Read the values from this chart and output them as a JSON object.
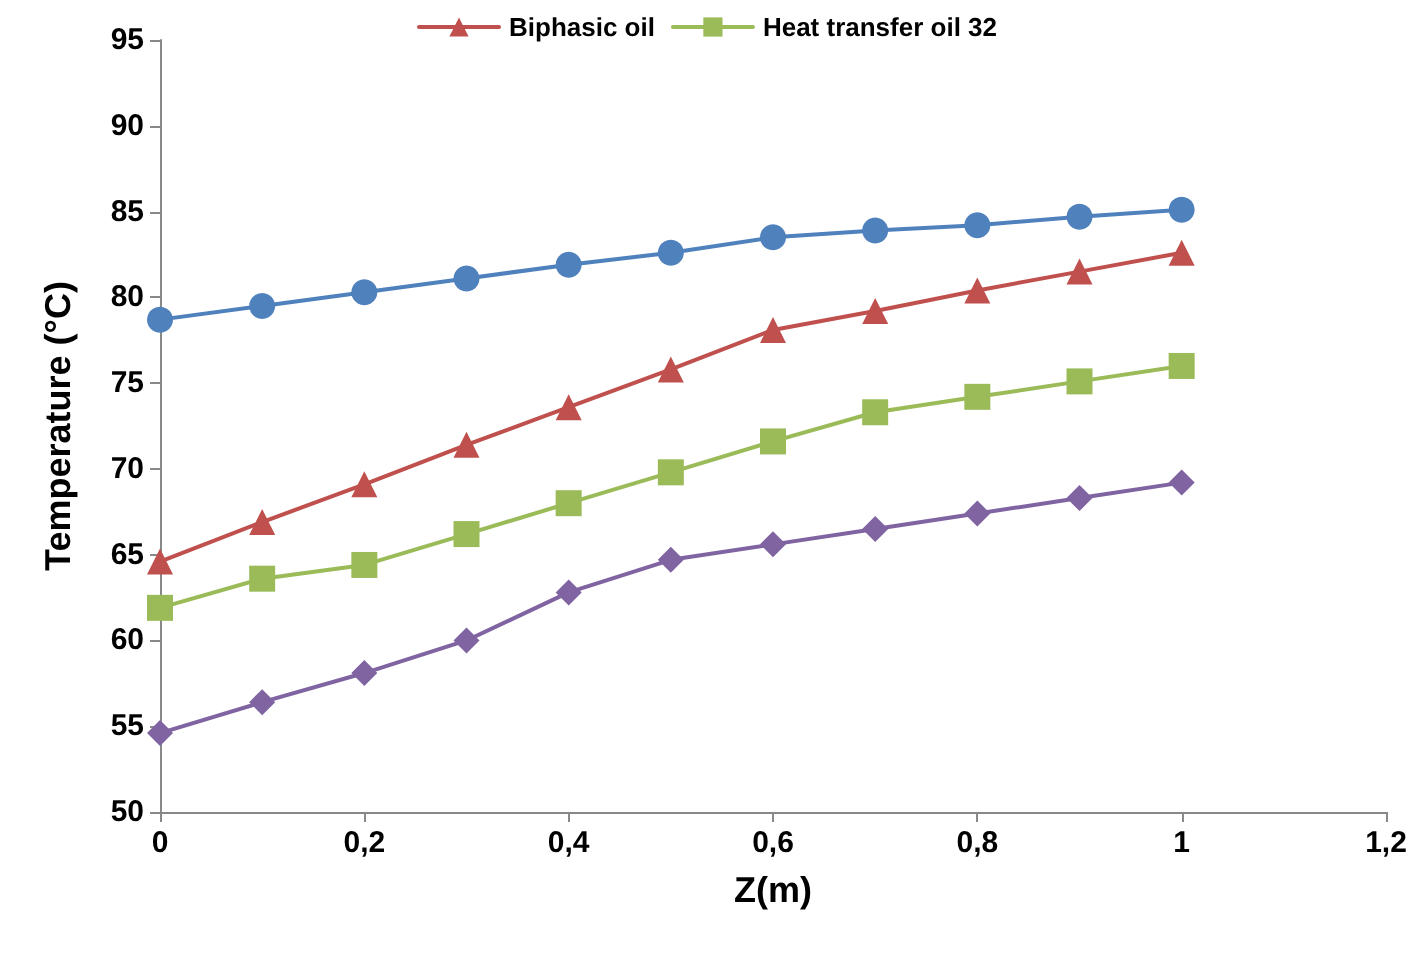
{
  "chart_data": {
    "type": "line",
    "xlabel": "Z(m)",
    "ylabel": "Temperature (°C)",
    "x": [
      0,
      0.1,
      0.2,
      0.3,
      0.4,
      0.5,
      0.6,
      0.7,
      0.8,
      0.9,
      1
    ],
    "series": [
      {
        "color": "#4f81bd",
        "marker": "circle",
        "values": [
          78.7,
          79.5,
          80.3,
          81.1,
          81.9,
          82.6,
          83.5,
          83.9,
          84.2,
          84.7,
          85.1
        ]
      },
      {
        "name": "Biphasic oil",
        "color": "#c0504d",
        "marker": "triangle",
        "values": [
          64.6,
          66.9,
          69.1,
          71.4,
          73.6,
          75.8,
          78.1,
          79.2,
          80.4,
          81.5,
          82.6
        ]
      },
      {
        "name": "Heat transfer oil 32",
        "color": "#9bbb59",
        "marker": "square",
        "values": [
          61.9,
          63.6,
          64.4,
          66.2,
          68.0,
          69.8,
          71.6,
          73.3,
          74.2,
          75.1,
          76.0
        ]
      },
      {
        "color": "#8064a2",
        "marker": "diamond",
        "values": [
          54.6,
          56.4,
          58.1,
          60.0,
          62.8,
          64.7,
          65.6,
          66.5,
          67.4,
          68.3,
          69.2
        ]
      }
    ],
    "xlim": [
      0,
      1.2
    ],
    "xticks": [
      0,
      {
        "value": 0.2,
        "label": "0,2"
      },
      {
        "value": 0.4,
        "label": "0,4"
      },
      {
        "value": 0.6,
        "label": "0,6"
      },
      {
        "value": 0.8,
        "label": "0,8"
      },
      1,
      {
        "value": 1.2,
        "label": "1,2"
      }
    ],
    "ylim": [
      50,
      95
    ],
    "yticks": [
      50,
      55,
      60,
      65,
      70,
      75,
      80,
      85,
      90,
      95
    ],
    "grid": false,
    "legend": "top"
  }
}
